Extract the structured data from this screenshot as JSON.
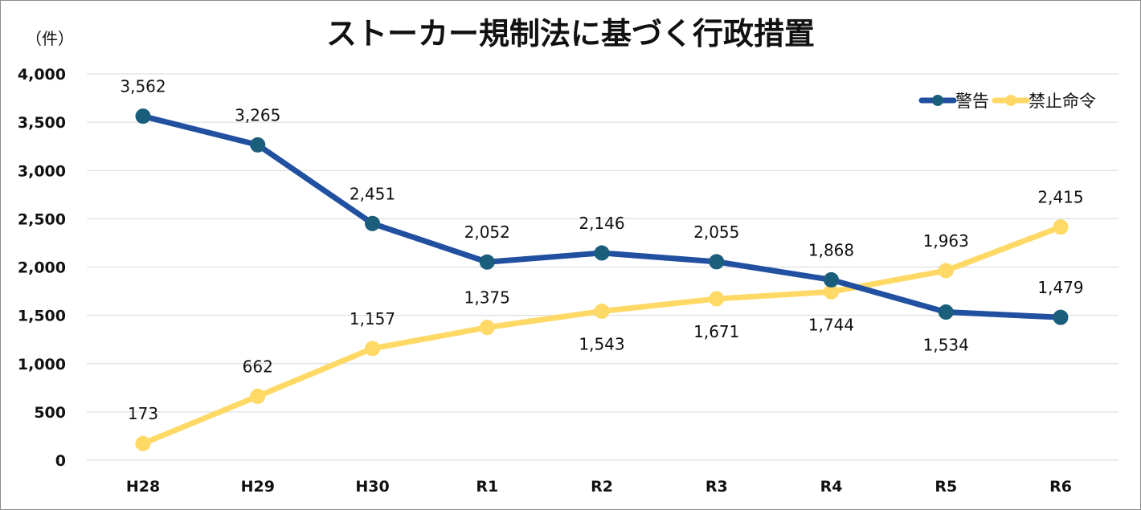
{
  "chart_data": {
    "type": "line",
    "title": "ストーカー規制法に基づく行政措置",
    "ylabel": "（件）",
    "xlabel": "",
    "categories": [
      "H28",
      "H29",
      "H30",
      "R1",
      "R2",
      "R3",
      "R4",
      "R5",
      "R6"
    ],
    "ylim": [
      0,
      4000
    ],
    "yticks": [
      0,
      500,
      1000,
      1500,
      2000,
      2500,
      3000,
      3500,
      4000
    ],
    "ytick_labels": [
      "0",
      "500",
      "1,000",
      "1,500",
      "2,000",
      "2,500",
      "3,000",
      "3,500",
      "4,000"
    ],
    "grid": true,
    "legend_position": "top-right",
    "series": [
      {
        "name": "警告",
        "values": [
          3562,
          3265,
          2451,
          2052,
          2146,
          2055,
          1868,
          1534,
          1479
        ],
        "labels": [
          "3,562",
          "3,265",
          "2,451",
          "2,052",
          "2,146",
          "2,055",
          "1,868",
          "1,534",
          "1,479"
        ],
        "line_color": "#2150a0",
        "marker_color": "#1b5e7c"
      },
      {
        "name": "禁止命令",
        "values": [
          173,
          662,
          1157,
          1375,
          1543,
          1671,
          1744,
          1963,
          2415
        ],
        "labels": [
          "173",
          "662",
          "1,157",
          "1,375",
          "1,543",
          "1,671",
          "1,744",
          "1,963",
          "2,415"
        ],
        "line_color": "#ffd966",
        "marker_color": "#ffd966"
      }
    ]
  }
}
